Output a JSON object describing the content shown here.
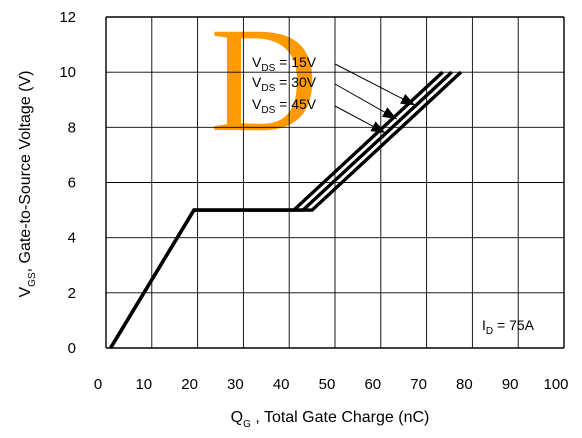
{
  "chart_data": {
    "type": "line",
    "xlabel": {
      "main": "Q",
      "sub": "G",
      "rest": " , Total Gate Charge (nC)"
    },
    "ylabel": {
      "main": "V",
      "sub": "GS",
      "rest": ", Gate-to-Source Voltage (V)"
    },
    "xlim": [
      0,
      100
    ],
    "ylim": [
      0,
      12
    ],
    "xticks": [
      0,
      10,
      20,
      30,
      40,
      50,
      60,
      70,
      80,
      90,
      100
    ],
    "yticks": [
      0,
      2,
      4,
      6,
      8,
      10,
      12
    ],
    "grid": true,
    "series": [
      {
        "name": "VDS = 15V",
        "x": [
          1,
          19.2,
          41,
          73.5
        ],
        "y": [
          0,
          5,
          5,
          10
        ]
      },
      {
        "name": "VDS = 30V",
        "x": [
          1,
          19.2,
          43,
          75.5
        ],
        "y": [
          0,
          5,
          5,
          10
        ]
      },
      {
        "name": "VDS = 45V",
        "x": [
          1,
          19.2,
          45,
          77.5
        ],
        "y": [
          0,
          5,
          5,
          10
        ]
      }
    ],
    "annotations": [
      {
        "id": "vds15",
        "main": "V",
        "sub": "DS",
        "rest": " = 15V",
        "arrow_to": [
          67.5,
          8.8
        ]
      },
      {
        "id": "vds30",
        "main": "V",
        "sub": "DS",
        "rest": " = 30V",
        "arrow_to": [
          63.5,
          8.3
        ]
      },
      {
        "id": "vds45",
        "main": "V",
        "sub": "DS",
        "rest": " = 45V",
        "arrow_to": [
          61,
          7.8
        ]
      },
      {
        "id": "id",
        "main": "I",
        "sub": "D",
        "rest": " = 75A"
      }
    ],
    "watermark": "D"
  },
  "colors": {
    "line": "#000000",
    "grid": "#000000",
    "watermark": "#ff9a00"
  }
}
